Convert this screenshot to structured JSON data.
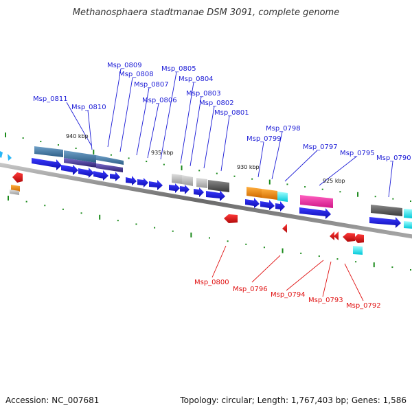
{
  "title": "Methanosphaera stadtmanae DSM 3091, complete genome",
  "accession": "Accession: NC_007681",
  "topology": "Topology: circular; Length: 1,767,403 bp; Genes: 1,586",
  "colors": {
    "forward_label": "#1a1ad6",
    "reverse_label": "#e01010",
    "forward_arrow": "#1414f0",
    "reverse_arrow": "#e81414",
    "backbone": "#8a8a8a",
    "tick": "#1a8a1a"
  },
  "position_labels": [
    "940 kbp",
    "935 kbp",
    "930 kbp",
    "925 kbp"
  ],
  "forward_genes": [
    "Msp_0811",
    "Msp_0810",
    "Msp_0809",
    "Msp_0808",
    "Msp_0807",
    "Msp_0806",
    "Msp_0805",
    "Msp_0804",
    "Msp_0803",
    "Msp_0802",
    "Msp_0801",
    "Msp_0799",
    "Msp_0798",
    "Msp_0797",
    "Msp_0795",
    "Msp_0790"
  ],
  "reverse_genes": [
    "Msp_0800",
    "Msp_0796",
    "Msp_0794",
    "Msp_0793",
    "Msp_0792"
  ]
}
